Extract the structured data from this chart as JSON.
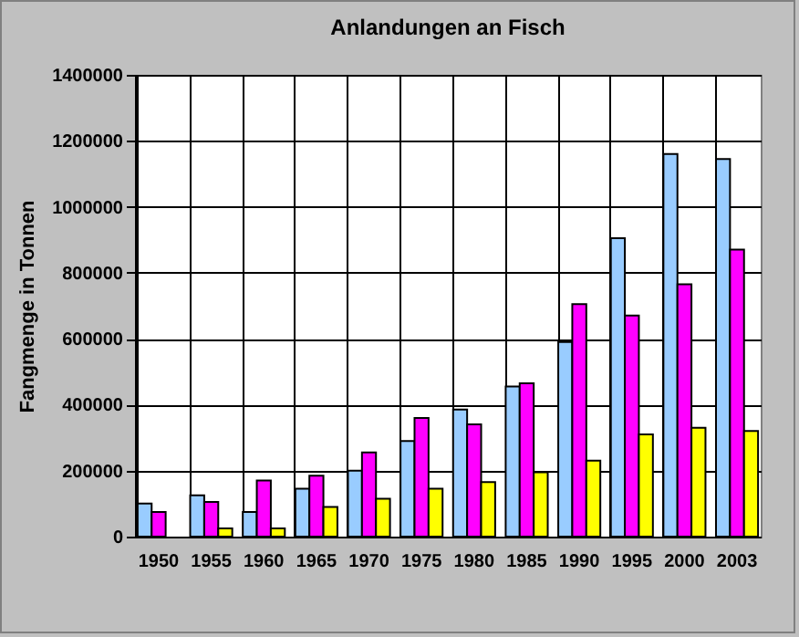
{
  "chart_data": {
    "type": "bar",
    "title": "Anlandungen an Fisch",
    "ylabel": "Fangmenge in Tonnen",
    "categories": [
      "1950",
      "1955",
      "1960",
      "1965",
      "1970",
      "1975",
      "1980",
      "1985",
      "1990",
      "1995",
      "2000",
      "2003"
    ],
    "series": [
      {
        "color": "#99ccff",
        "values": [
          100000,
          125000,
          75000,
          145000,
          200000,
          290000,
          385000,
          455000,
          590000,
          905000,
          1160000,
          1145000
        ]
      },
      {
        "color": "#ff00ff",
        "values": [
          75000,
          105000,
          170000,
          185000,
          255000,
          360000,
          340000,
          465000,
          705000,
          670000,
          765000,
          870000
        ]
      },
      {
        "color": "#ffff00",
        "values": [
          null,
          25000,
          25000,
          90000,
          115000,
          145000,
          165000,
          195000,
          230000,
          310000,
          330000,
          320000
        ]
      }
    ],
    "ylim": [
      0,
      1400000
    ],
    "yticks": [
      0,
      200000,
      400000,
      600000,
      800000,
      1000000,
      1200000,
      1400000
    ],
    "grid": true,
    "legend": false
  }
}
